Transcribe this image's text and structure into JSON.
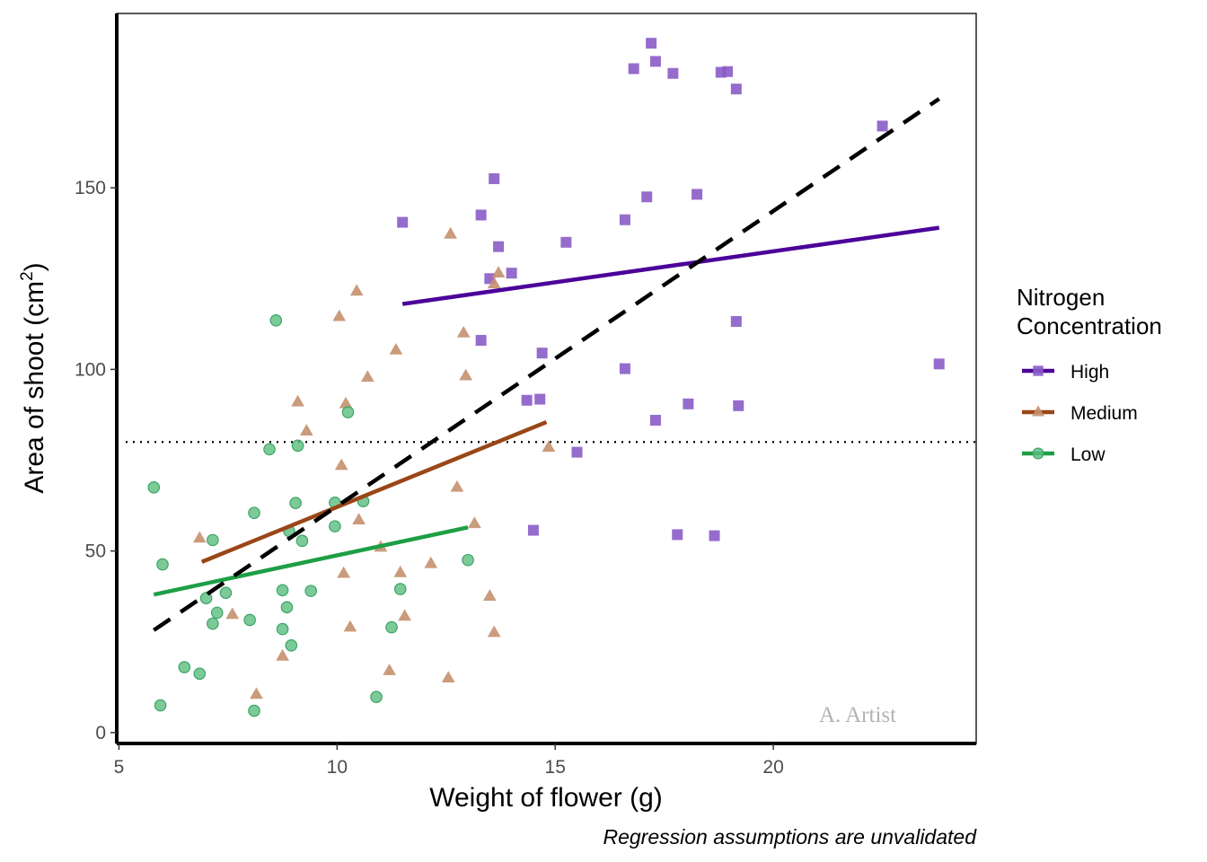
{
  "chart_data": {
    "type": "scatter",
    "xlabel": "Weight of flower (g)",
    "ylabel_main": "Area of shoot (cm",
    "ylabel_sup": "2",
    "ylabel_end": ")",
    "caption": "Regression assumptions are unvalidated",
    "watermark": "A. Artist",
    "xlim": [
      4.95,
      24.65
    ],
    "ylim": [
      -3,
      198
    ],
    "x_ticks": [
      5,
      10,
      15,
      20
    ],
    "y_ticks": [
      0,
      50,
      100,
      150
    ],
    "x_tick_labels": [
      "5",
      "10",
      "15",
      "20"
    ],
    "y_tick_labels": [
      "0",
      "50",
      "100",
      "150"
    ],
    "hline": {
      "y": 80,
      "style": "dotted"
    },
    "overall_fit": {
      "x": [
        5.8,
        23.8
      ],
      "y": [
        28.2,
        174.5
      ],
      "color": "#000000",
      "style": "dashed"
    },
    "legend": {
      "title_line1": "Nitrogen",
      "title_line2": "Concentration",
      "position": "right",
      "entries": [
        "High",
        "Medium",
        "Low"
      ]
    },
    "series": [
      {
        "name": "High",
        "marker": "square",
        "point_color": "#8a5cc7",
        "line_color": "#4b0099",
        "fit": {
          "x": [
            11.5,
            23.8
          ],
          "y": [
            118,
            139
          ]
        },
        "points": [
          [
            11.5,
            140.5
          ],
          [
            13.3,
            142.5
          ],
          [
            13.6,
            152.5
          ],
          [
            13.7,
            133.8
          ],
          [
            13.5,
            125
          ],
          [
            14.0,
            126.5
          ],
          [
            13.3,
            108
          ],
          [
            14.7,
            104.5
          ],
          [
            14.35,
            91.5
          ],
          [
            14.65,
            91.8
          ],
          [
            15.5,
            77.2
          ],
          [
            14.5,
            55.7
          ],
          [
            15.25,
            135
          ],
          [
            16.6,
            141.2
          ],
          [
            16.6,
            100.2
          ],
          [
            17.1,
            147.5
          ],
          [
            17.3,
            86
          ],
          [
            18.25,
            148.2
          ],
          [
            18.05,
            90.5
          ],
          [
            17.8,
            54.5
          ],
          [
            18.65,
            54.2
          ],
          [
            19.15,
            113.2
          ],
          [
            19.2,
            90
          ],
          [
            16.8,
            182.8
          ],
          [
            17.2,
            189.8
          ],
          [
            17.3,
            184.8
          ],
          [
            17.7,
            181.5
          ],
          [
            18.8,
            181.8
          ],
          [
            18.95,
            182
          ],
          [
            19.15,
            177.2
          ],
          [
            22.5,
            167
          ],
          [
            23.8,
            101.5
          ]
        ]
      },
      {
        "name": "Medium",
        "marker": "triangle",
        "point_color": "#c4906e",
        "line_color": "#9a4617",
        "fit": {
          "x": [
            6.9,
            14.8
          ],
          "y": [
            47,
            85.5
          ]
        },
        "points": [
          [
            6.85,
            53.5
          ],
          [
            7.6,
            32.5
          ],
          [
            8.15,
            10.5
          ],
          [
            8.75,
            21
          ],
          [
            9.1,
            91
          ],
          [
            9.3,
            83
          ],
          [
            10.05,
            114.5
          ],
          [
            10.1,
            73.5
          ],
          [
            10.15,
            43.8
          ],
          [
            10.2,
            90.5
          ],
          [
            10.3,
            29
          ],
          [
            10.45,
            121.5
          ],
          [
            10.5,
            58.5
          ],
          [
            10.7,
            97.8
          ],
          [
            11.0,
            51
          ],
          [
            11.2,
            17
          ],
          [
            11.35,
            105.3
          ],
          [
            11.45,
            44
          ],
          [
            11.55,
            32
          ],
          [
            12.15,
            46.5
          ],
          [
            12.55,
            15
          ],
          [
            12.6,
            137.2
          ],
          [
            12.75,
            67.5
          ],
          [
            12.9,
            110
          ],
          [
            12.95,
            98.2
          ],
          [
            13.15,
            57.5
          ],
          [
            13.5,
            37.5
          ],
          [
            13.6,
            27.5
          ],
          [
            13.6,
            123.5
          ],
          [
            13.7,
            126.5
          ],
          [
            14.85,
            78.5
          ]
        ]
      },
      {
        "name": "Low",
        "marker": "circle",
        "point_color": "#5dbd80",
        "line_color": "#1d9f45",
        "fit": {
          "x": [
            5.8,
            13.0
          ],
          "y": [
            38,
            56.5
          ]
        },
        "points": [
          [
            5.8,
            67.5
          ],
          [
            5.95,
            7.5
          ],
          [
            6.0,
            46.3
          ],
          [
            6.5,
            18
          ],
          [
            6.85,
            16.2
          ],
          [
            7.0,
            37
          ],
          [
            7.15,
            30
          ],
          [
            7.15,
            53
          ],
          [
            7.25,
            33
          ],
          [
            7.45,
            38.5
          ],
          [
            8.0,
            31
          ],
          [
            8.1,
            60.5
          ],
          [
            8.1,
            6
          ],
          [
            8.45,
            78
          ],
          [
            8.6,
            113.5
          ],
          [
            8.75,
            28.5
          ],
          [
            8.75,
            39.2
          ],
          [
            8.85,
            34.5
          ],
          [
            8.9,
            55.5
          ],
          [
            8.95,
            24
          ],
          [
            9.05,
            63.2
          ],
          [
            9.1,
            79
          ],
          [
            9.2,
            52.8
          ],
          [
            9.4,
            39
          ],
          [
            9.95,
            56.8
          ],
          [
            9.95,
            63.3
          ],
          [
            10.25,
            88.2
          ],
          [
            10.6,
            63.7
          ],
          [
            10.9,
            9.8
          ],
          [
            11.25,
            29
          ],
          [
            11.45,
            39.5
          ],
          [
            13.0,
            47.5
          ]
        ]
      }
    ]
  }
}
